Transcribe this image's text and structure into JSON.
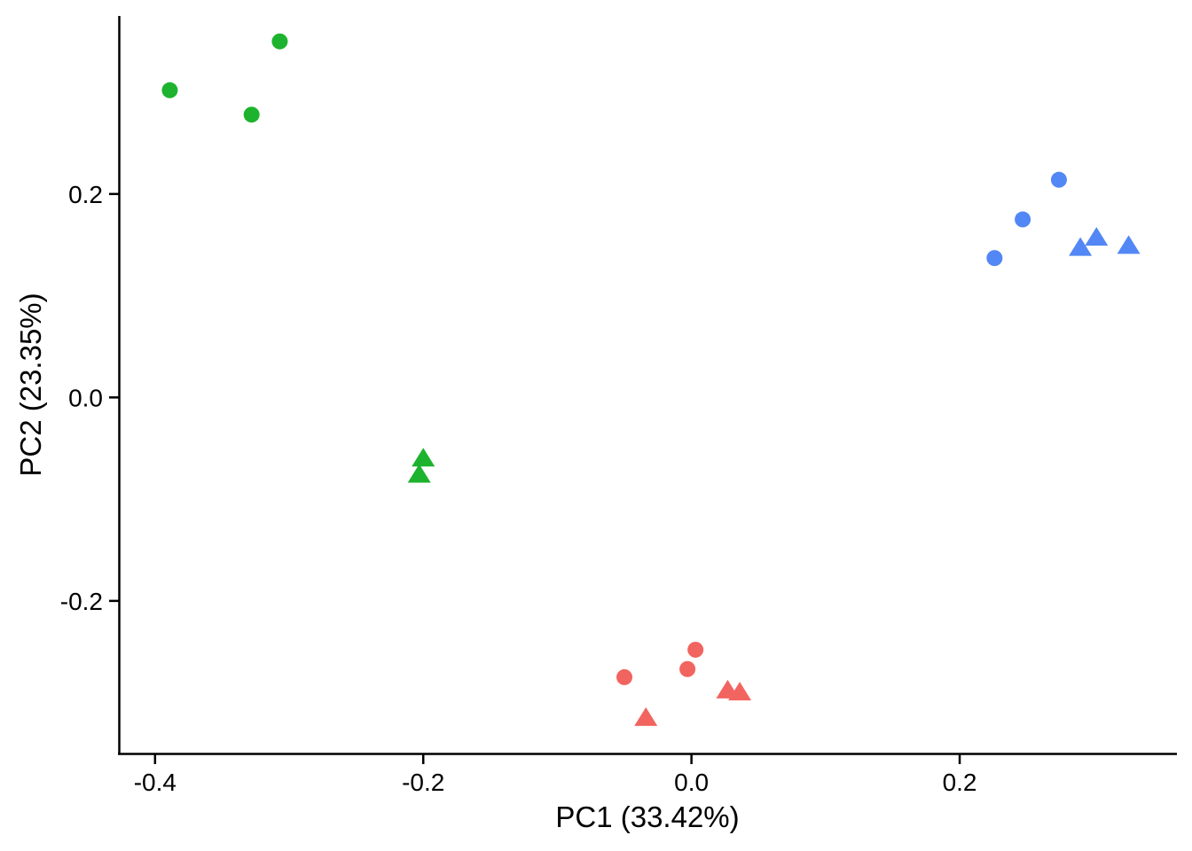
{
  "chart_data": {
    "type": "scatter",
    "title": "",
    "xlabel": "PC1 (33.42%)",
    "ylabel": "PC2 (23.35%)",
    "xlim": [
      -0.427,
      0.362
    ],
    "ylim": [
      -0.35,
      0.375
    ],
    "x_ticks": [
      -0.4,
      -0.2,
      0.0,
      0.2
    ],
    "x_tick_labels": [
      "-0.4",
      "-0.2",
      "0.0",
      "0.2"
    ],
    "y_ticks": [
      -0.2,
      0.0,
      0.2
    ],
    "y_tick_labels": [
      "-0.2",
      "0.0",
      "0.2"
    ],
    "grid": false,
    "legend": "none",
    "series": [
      {
        "color": "#1db32e",
        "shape": "circle",
        "points": [
          [
            -0.389,
            0.302
          ],
          [
            -0.307,
            0.35
          ],
          [
            -0.328,
            0.278
          ]
        ]
      },
      {
        "color": "#1db32e",
        "shape": "triangle",
        "points": [
          [
            -0.2,
            -0.06
          ],
          [
            -0.203,
            -0.076
          ]
        ]
      },
      {
        "color": "#f2645f",
        "shape": "circle",
        "points": [
          [
            -0.05,
            -0.275
          ],
          [
            -0.003,
            -0.267
          ],
          [
            0.003,
            -0.248
          ]
        ]
      },
      {
        "color": "#f2645f",
        "shape": "triangle",
        "points": [
          [
            -0.034,
            -0.315
          ],
          [
            0.027,
            -0.288
          ],
          [
            0.036,
            -0.29
          ]
        ]
      },
      {
        "color": "#5287f5",
        "shape": "circle",
        "points": [
          [
            0.226,
            0.137
          ],
          [
            0.247,
            0.175
          ],
          [
            0.274,
            0.214
          ]
        ]
      },
      {
        "color": "#5287f5",
        "shape": "triangle",
        "points": [
          [
            0.29,
            0.147
          ],
          [
            0.302,
            0.157
          ],
          [
            0.326,
            0.149
          ]
        ]
      }
    ]
  }
}
